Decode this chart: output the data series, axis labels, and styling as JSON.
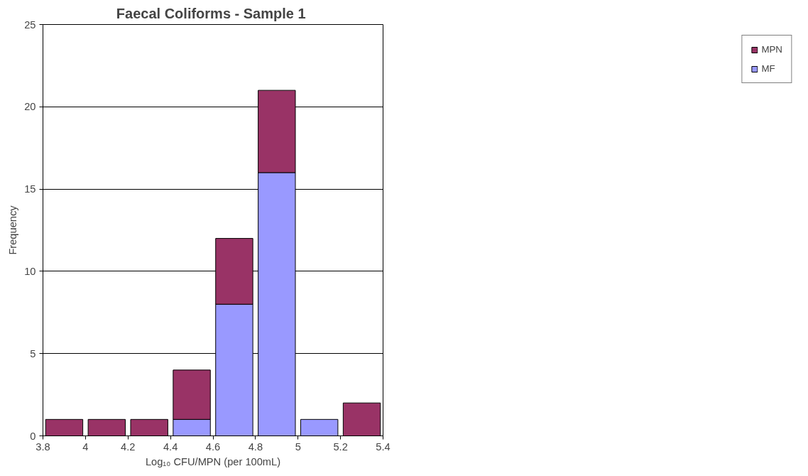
{
  "chart_data": {
    "type": "bar",
    "stacked": true,
    "title": "Faecal Coliforms  - Sample 1",
    "xlabel": "Log₁₀ CFU/MPN (per 100mL)",
    "ylabel": "Frequency",
    "x": [
      3.9,
      4.1,
      4.3,
      4.5,
      4.7,
      4.9,
      5.1,
      5.3
    ],
    "series": [
      {
        "name": "MF",
        "color": "#9999ff",
        "values": [
          0,
          0,
          0,
          1,
          8,
          16,
          1,
          0
        ]
      },
      {
        "name": "MPN",
        "color": "#993366",
        "values": [
          1,
          1,
          1,
          3,
          4,
          5,
          0,
          2
        ]
      }
    ],
    "xlim": [
      3.8,
      5.4
    ],
    "xticks": [
      3.8,
      4,
      4.2,
      4.4,
      4.6,
      4.8,
      5,
      5.2,
      5.4
    ],
    "ylim": [
      0,
      25
    ],
    "yticks": [
      0,
      5,
      10,
      15,
      20,
      25
    ],
    "grid": "y",
    "legend": "right"
  }
}
